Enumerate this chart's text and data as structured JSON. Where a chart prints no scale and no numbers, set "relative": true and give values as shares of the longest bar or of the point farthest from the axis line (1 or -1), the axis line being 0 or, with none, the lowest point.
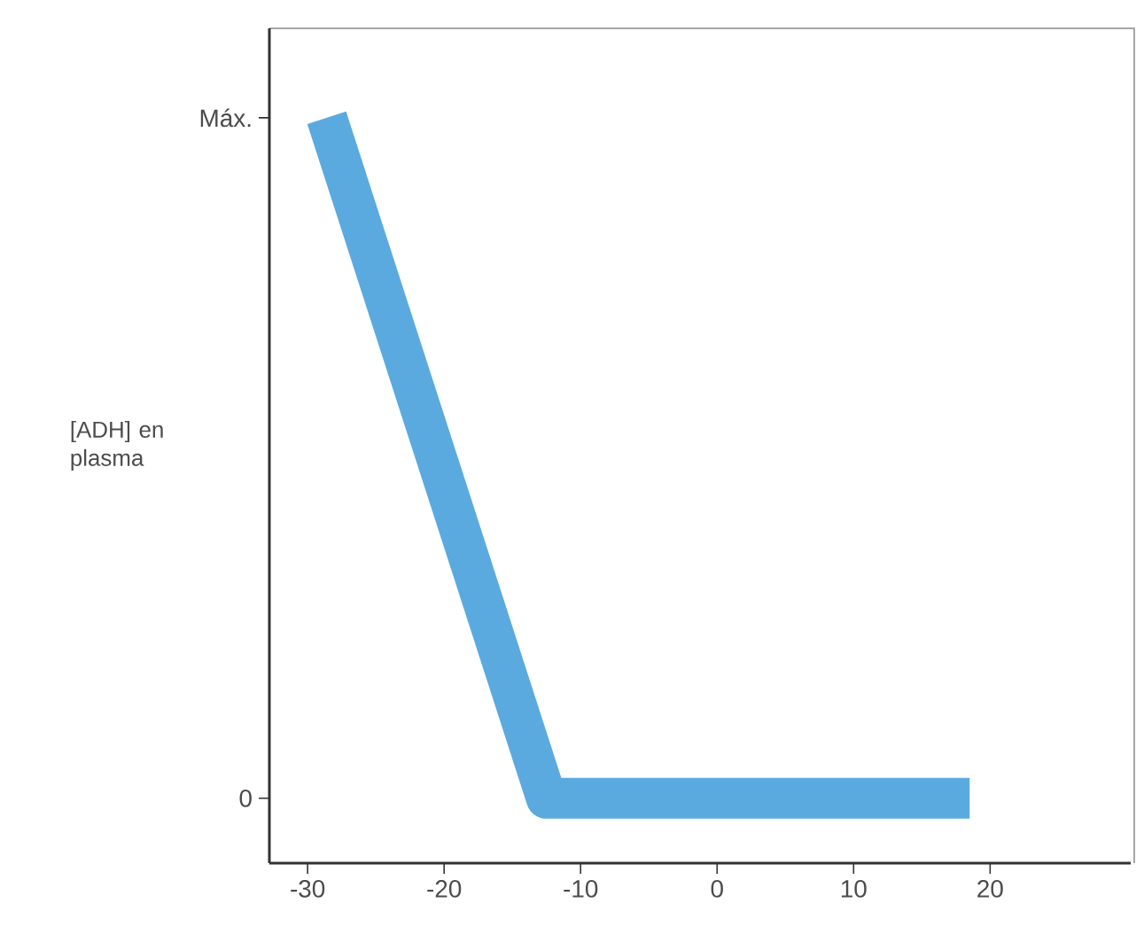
{
  "chart_data": {
    "type": "line",
    "ylabel": "[ADH] en plasma",
    "relative": true,
    "x": [
      -28.6,
      -12.5,
      18.5
    ],
    "series": [
      {
        "color": "#5aaae0",
        "values": [
          1,
          0.087,
          0.087
        ]
      }
    ],
    "annotations": [
      "Máx.",
      "0"
    ],
    "xlim": [
      -32.8,
      30.3
    ],
    "xticks": [
      -30,
      -20,
      -10,
      0,
      10,
      20
    ],
    "grid": false
  }
}
